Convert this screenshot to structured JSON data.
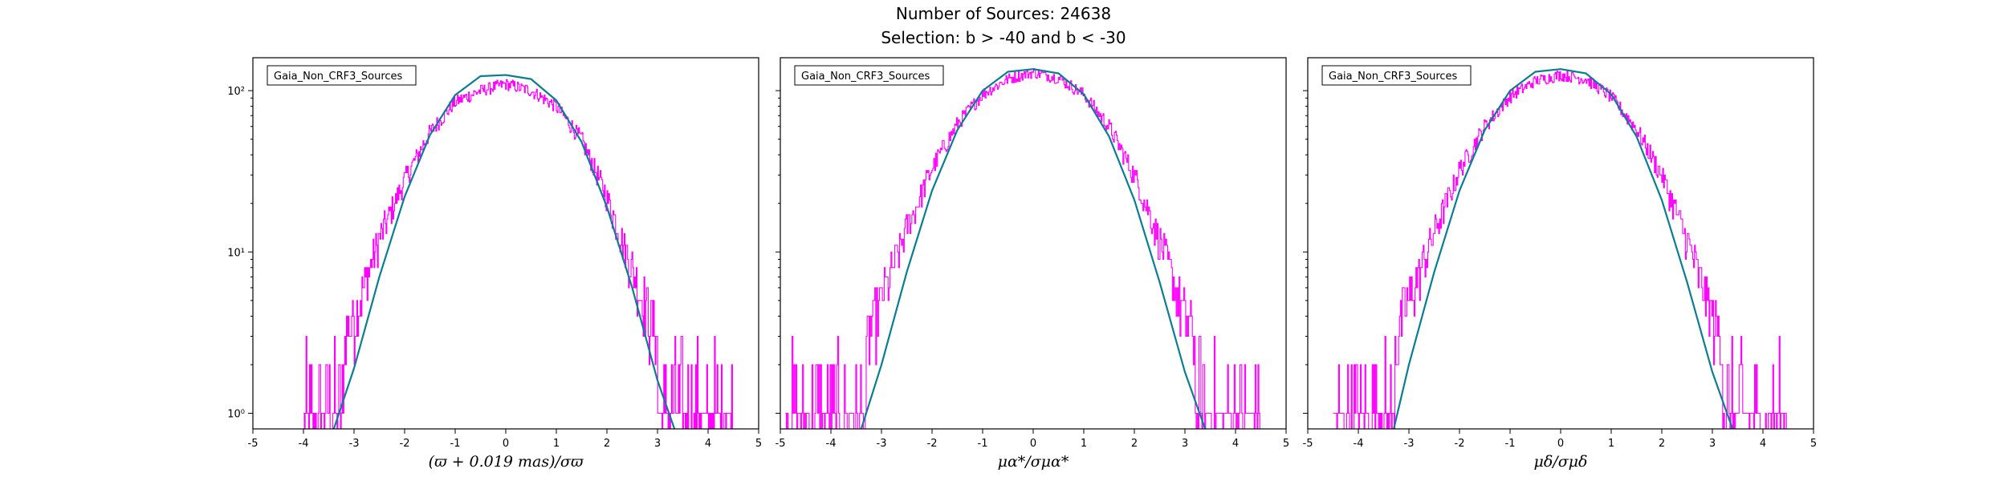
{
  "figure": {
    "title_line1": "Number of Sources: 24638",
    "title_line2": "Selection: b > -40 and b < -30"
  },
  "colors": {
    "histogram": "#ff00ff",
    "fit": "#1f77b4",
    "fit_blend": "#008080",
    "axes": "#000000"
  },
  "chart_data": [
    {
      "type": "line",
      "xlabel": "(ϖ + 0.019 mas)/σϖ",
      "ylabel": "",
      "legend": [
        "Gaia_Non_CRF3_Sources"
      ],
      "legend_position": "top-left",
      "xlim": [
        -5,
        5
      ],
      "ylim": [
        0.8,
        160
      ],
      "yscale": "log",
      "xticks": [
        -5,
        -4,
        -3,
        -2,
        -1,
        0,
        1,
        2,
        3,
        4,
        5
      ],
      "yticks": [
        {
          "value": 1,
          "label": "10⁰"
        },
        {
          "value": 10,
          "label": "10¹"
        },
        {
          "value": 100,
          "label": "10²"
        }
      ],
      "series": [
        {
          "kind": "histogram",
          "x": [
            -4.0,
            -3.5,
            -3.0,
            -2.5,
            -2.0,
            -1.5,
            -1.0,
            -0.5,
            0.0,
            0.5,
            1.0,
            1.5,
            2.0,
            2.5,
            3.0,
            3.5,
            4.0,
            4.5
          ],
          "values": [
            1,
            2,
            4,
            12,
            28,
            55,
            85,
            100,
            110,
            100,
            80,
            50,
            22,
            8,
            3,
            1.5,
            1,
            1
          ]
        },
        {
          "kind": "fit",
          "x": [
            -3.4,
            -3.0,
            -2.5,
            -2.0,
            -1.5,
            -1.0,
            -0.5,
            0.0,
            0.5,
            1.0,
            1.5,
            2.0,
            2.5,
            3.0,
            3.4
          ],
          "values": [
            0.8,
            1.9,
            7,
            22,
            53,
            94,
            123,
            125,
            118,
            87,
            48,
            19,
            6,
            1.6,
            0.7
          ]
        }
      ]
    },
    {
      "type": "line",
      "xlabel": "μα*/σμα*",
      "ylabel": "",
      "legend": [
        "Gaia_Non_CRF3_Sources"
      ],
      "legend_position": "top-left",
      "xlim": [
        -5,
        5
      ],
      "ylim": [
        0.8,
        160
      ],
      "yscale": "log",
      "xticks": [
        -5,
        -4,
        -3,
        -2,
        -1,
        0,
        1,
        2,
        3,
        4,
        5
      ],
      "series": [
        {
          "kind": "histogram",
          "x": [
            -4.9,
            -4.5,
            -4.0,
            -3.5,
            -3.0,
            -2.5,
            -2.0,
            -1.5,
            -1.0,
            -0.5,
            0.0,
            0.5,
            1.0,
            1.5,
            2.0,
            2.5,
            3.0,
            3.5,
            4.0,
            4.5
          ],
          "values": [
            1,
            1,
            1.5,
            2,
            5,
            14,
            33,
            62,
            95,
            118,
            130,
            120,
            95,
            60,
            30,
            12,
            4,
            2,
            1.5,
            1
          ]
        },
        {
          "kind": "fit",
          "x": [
            -3.4,
            -3.0,
            -2.5,
            -2.0,
            -1.5,
            -1.0,
            -0.5,
            0.0,
            0.5,
            1.0,
            1.5,
            2.0,
            2.5,
            3.0,
            3.4
          ],
          "values": [
            0.8,
            2.0,
            7.5,
            24,
            57,
            100,
            131,
            136,
            128,
            95,
            52,
            21,
            6.5,
            1.8,
            0.8
          ]
        }
      ]
    },
    {
      "type": "line",
      "xlabel": "μδ/σμδ",
      "ylabel": "",
      "legend": [
        "Gaia_Non_CRF3_Sources"
      ],
      "legend_position": "top-left",
      "xlim": [
        -5,
        5
      ],
      "ylim": [
        0.8,
        160
      ],
      "yscale": "log",
      "xticks": [
        -5,
        -4,
        -3,
        -2,
        -1,
        0,
        1,
        2,
        3,
        4,
        5
      ],
      "series": [
        {
          "kind": "histogram",
          "x": [
            -4.5,
            -4.0,
            -3.5,
            -3.0,
            -2.5,
            -2.0,
            -1.5,
            -1.0,
            -0.5,
            0.0,
            0.5,
            1.0,
            1.5,
            2.0,
            2.5,
            3.0,
            3.5,
            4.0,
            4.5
          ],
          "values": [
            1,
            1.2,
            2,
            5,
            13,
            32,
            60,
            92,
            115,
            125,
            118,
            92,
            58,
            30,
            12,
            4,
            2,
            1.2,
            1
          ]
        },
        {
          "kind": "fit",
          "x": [
            -3.3,
            -3.0,
            -2.5,
            -2.0,
            -1.5,
            -1.0,
            -0.5,
            0.0,
            0.5,
            1.0,
            1.5,
            2.0,
            2.5,
            3.0,
            3.4
          ],
          "values": [
            0.8,
            2.0,
            7.5,
            24,
            57,
            100,
            131,
            136,
            128,
            95,
            52,
            21,
            6.5,
            1.8,
            0.8
          ]
        }
      ]
    }
  ]
}
